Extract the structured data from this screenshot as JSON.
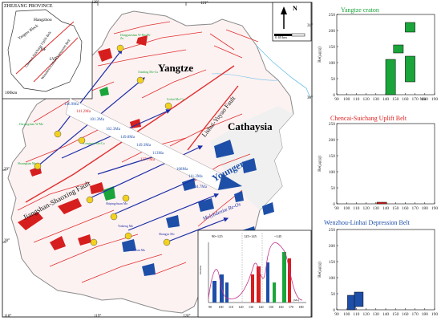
{
  "map": {
    "inset": {
      "province": "ZHEJIANG PROVINCE",
      "city": "Hangzhou",
      "regions": [
        "Yangtze Block",
        "Chencai-Suichang Uplift Belt",
        "Wenzhou-Linhai Depression Belt"
      ],
      "faults": [
        "JSF",
        "LYF"
      ],
      "scale": "100km"
    },
    "north": {
      "label": "N",
      "scale_text": "0   40 km"
    },
    "lat_labels": [
      "31°",
      "30°",
      "29°",
      "28°"
    ],
    "lon_labels": [
      "118°",
      "119°",
      "120°",
      "121°",
      "118°",
      "119°",
      "120°"
    ],
    "block_labels": {
      "yangtze": "Yangtze",
      "cathaysia": "Cathaysia"
    },
    "fault_labels": {
      "jsf": "Jiangshan-Shaoxing Fault",
      "lyf": "Lishui-Yuyao Fault"
    },
    "trend": {
      "younger": "Younger",
      "method": "Molybdenite Re-Os"
    },
    "ages": [
      "146.9Ma",
      "141.2Ma",
      "101.3Ma",
      "162.3Ma",
      "149.8Ma",
      "149.3Ma",
      "113Ma",
      "137.7Ma",
      "108Ma",
      "111.2Ma",
      "104.7Ma"
    ],
    "deposits": [
      "Dongjianshan W-Mo-Pb-Zn",
      "Xianling Mo-Cu",
      "Lishui Mo-Cu",
      "Daiyingshan W-Mo",
      "Longmen Mo-Cu",
      "Shuangtian Mo",
      "Shipingchuan Mo",
      "Zhuxin Mo",
      "Shangyu Mo",
      "Yinkeng Mo"
    ],
    "inset_histogram": {
      "range_labels": [
        "90~125",
        "125~145",
        "~145"
      ],
      "x_ticks": [
        "90",
        "100",
        "110",
        "120",
        "130",
        "140",
        "150",
        "160",
        "170",
        "180"
      ],
      "x_unit": "(Ma)",
      "y_label": "Number"
    }
  },
  "charts": [
    {
      "title": "Yangtze craton",
      "title_color": "#1aa53a",
      "ylabel": "Re(μg/g)",
      "yticks": [
        "0",
        "50",
        "100",
        "150",
        "200",
        "250"
      ],
      "xticks": [
        "90",
        "100",
        "110",
        "120",
        "130",
        "140",
        "150",
        "160",
        "170",
        "180",
        "190"
      ],
      "xunit": "Ma"
    },
    {
      "title": "Chencai-Suichang Uplift Belt",
      "title_color": "#e02020",
      "ylabel": "Re(μg/g)",
      "yticks": [
        "0",
        "50",
        "100",
        "150",
        "200",
        "250"
      ],
      "xticks": [
        "90",
        "100",
        "110",
        "120",
        "130",
        "140",
        "150",
        "160",
        "170",
        "180",
        "190"
      ],
      "xunit": ""
    },
    {
      "title": "Wenzhou-Linhai Depression Belt",
      "title_color": "#1e4fa8",
      "ylabel": "Re(μg/g)",
      "yticks": [
        "0",
        "50",
        "100",
        "150",
        "200",
        "250"
      ],
      "xticks": [
        "90",
        "100",
        "110",
        "120",
        "130",
        "140",
        "150",
        "160",
        "170",
        "180",
        "190"
      ],
      "xunit": ""
    }
  ],
  "chart_data": [
    {
      "type": "bar",
      "title": "Yangtze craton",
      "xlim": [
        90,
        190
      ],
      "ylim": [
        0,
        250
      ],
      "boxes": [
        {
          "x0": 140,
          "x1": 150,
          "y0": 0,
          "y1": 110,
          "color": "#1aa53a"
        },
        {
          "x0": 148,
          "x1": 158,
          "y0": 130,
          "y1": 155,
          "color": "#1aa53a"
        },
        {
          "x0": 160,
          "x1": 170,
          "y0": 195,
          "y1": 225,
          "color": "#1aa53a"
        },
        {
          "x0": 160,
          "x1": 170,
          "y0": 40,
          "y1": 120,
          "color": "#1aa53a"
        }
      ]
    },
    {
      "type": "bar",
      "title": "Chencai-Suichang Uplift Belt",
      "xlim": [
        90,
        190
      ],
      "ylim": [
        0,
        250
      ],
      "boxes": [
        {
          "x0": 131,
          "x1": 141,
          "y0": 0,
          "y1": 5,
          "color": "#e02020"
        }
      ]
    },
    {
      "type": "bar",
      "title": "Wenzhou-Linhai Depression Belt",
      "xlim": [
        90,
        190
      ],
      "ylim": [
        0,
        250
      ],
      "boxes": [
        {
          "x0": 101,
          "x1": 109,
          "y0": 0,
          "y1": 45,
          "color": "#1e4fa8"
        },
        {
          "x0": 108,
          "x1": 117,
          "y0": 10,
          "y1": 55,
          "color": "#1e4fa8"
        }
      ]
    }
  ]
}
